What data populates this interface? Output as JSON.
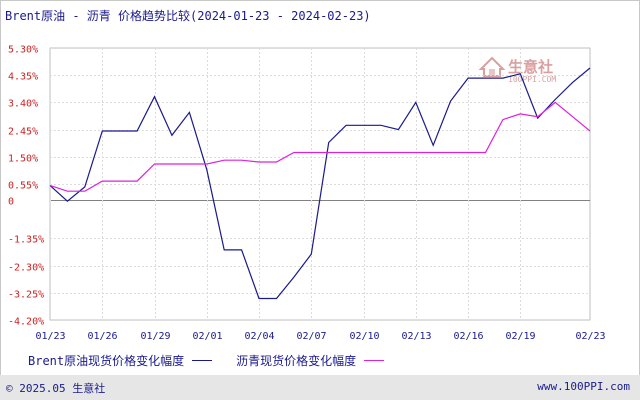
{
  "page": {
    "title": "Brent原油 - 沥青 价格趋势比较(2024-01-23 - 2024-02-23)",
    "copyright": "© 2025.05 生意社",
    "site": "www.100PPI.com"
  },
  "watermark": {
    "logo_text": "生意社",
    "url_text": "100PPI.COM",
    "color": "#d9a0a0"
  },
  "chart_data": {
    "type": "line",
    "yticks": [
      5.3,
      4.35,
      3.4,
      2.45,
      1.5,
      0.55,
      0,
      -1.35,
      -2.3,
      -3.25,
      -4.2
    ],
    "ytick_labels": [
      "5.30%",
      "4.35%",
      "3.40%",
      "2.45%",
      "1.50%",
      "0.55%",
      "0",
      "-1.35%",
      "-2.30%",
      "-3.25%",
      "-4.20%"
    ],
    "ylim": [
      -4.2,
      5.3
    ],
    "xlim": [
      0,
      31
    ],
    "xtick_positions": [
      0,
      3,
      6,
      9,
      12,
      15,
      18,
      21,
      24,
      27,
      31
    ],
    "xtick_labels": [
      "01/23",
      "01/26",
      "01/29",
      "02/01",
      "02/04",
      "02/07",
      "02/10",
      "02/13",
      "02/16",
      "02/19",
      "02/23"
    ],
    "grid": true,
    "legend_position": "bottom",
    "series": [
      {
        "name": "Brent原油现货价格变化幅度",
        "color": "#1a1a8c",
        "points": [
          [
            0,
            0.5
          ],
          [
            1,
            -0.05
          ],
          [
            2,
            0.45
          ],
          [
            3,
            2.4
          ],
          [
            4,
            2.4
          ],
          [
            5,
            2.4
          ],
          [
            6,
            3.6
          ],
          [
            7,
            2.25
          ],
          [
            8,
            3.05
          ],
          [
            9,
            1.05
          ],
          [
            10,
            -1.75
          ],
          [
            11,
            -1.75
          ],
          [
            12,
            -3.45
          ],
          [
            13,
            -3.45
          ],
          [
            14,
            -2.7
          ],
          [
            15,
            -1.9
          ],
          [
            16,
            2.0
          ],
          [
            17,
            2.6
          ],
          [
            18,
            2.6
          ],
          [
            19,
            2.6
          ],
          [
            20,
            2.45
          ],
          [
            21,
            3.4
          ],
          [
            22,
            1.9
          ],
          [
            23,
            3.45
          ],
          [
            24,
            4.25
          ],
          [
            25,
            4.25
          ],
          [
            26,
            4.25
          ],
          [
            27,
            4.4
          ],
          [
            28,
            2.85
          ],
          [
            29,
            3.5
          ],
          [
            30,
            4.1
          ],
          [
            31,
            4.6
          ]
        ]
      },
      {
        "name": "沥青现货价格变化幅度",
        "color": "#dd22dd",
        "points": [
          [
            0,
            0.5
          ],
          [
            1,
            0.3
          ],
          [
            2,
            0.3
          ],
          [
            3,
            0.65
          ],
          [
            4,
            0.65
          ],
          [
            5,
            0.65
          ],
          [
            6,
            1.25
          ],
          [
            7,
            1.25
          ],
          [
            8,
            1.25
          ],
          [
            9,
            1.25
          ],
          [
            10,
            1.38
          ],
          [
            11,
            1.38
          ],
          [
            12,
            1.32
          ],
          [
            13,
            1.32
          ],
          [
            14,
            1.65
          ],
          [
            15,
            1.65
          ],
          [
            16,
            1.65
          ],
          [
            17,
            1.65
          ],
          [
            18,
            1.65
          ],
          [
            19,
            1.65
          ],
          [
            20,
            1.65
          ],
          [
            21,
            1.65
          ],
          [
            22,
            1.65
          ],
          [
            23,
            1.65
          ],
          [
            24,
            1.65
          ],
          [
            25,
            1.65
          ],
          [
            26,
            2.8
          ],
          [
            27,
            3.0
          ],
          [
            28,
            2.9
          ],
          [
            29,
            3.4
          ],
          [
            30,
            2.9
          ],
          [
            31,
            2.4
          ]
        ]
      }
    ]
  }
}
